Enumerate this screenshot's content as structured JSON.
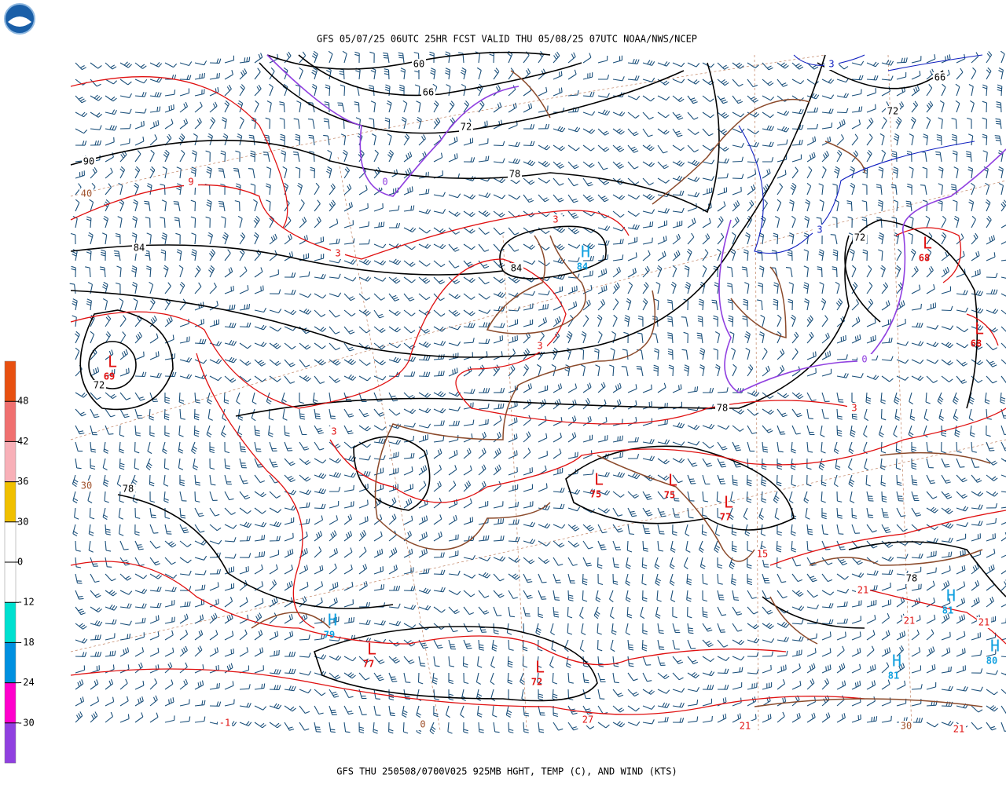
{
  "header": {
    "title": "GFS 05/07/25 06UTC 25HR FCST VALID THU 05/08/25 07UTC NOAA/NWS/NCEP"
  },
  "footer": {
    "text": "GFS THU 250508/0700V025 925MB HGHT, TEMP (C), AND WIND (KTS)"
  },
  "colorbar": {
    "colors": [
      "#e85010",
      "#f07070",
      "#f8b0b8",
      "#f0c000",
      "#ffffff",
      "#ffffff",
      "#00e0d0",
      "#0090e0",
      "#ff00cc",
      "#9040e0"
    ],
    "labels": [
      "48",
      "42",
      "36",
      "30",
      "0",
      "-12",
      "-18",
      "-24",
      "-30"
    ]
  },
  "centers": [
    {
      "letter": "L",
      "value": "69",
      "color": "#e01010",
      "value_color": "#e01010"
    },
    {
      "letter": "H",
      "value": "84",
      "color": "#10a0e0",
      "value_color": "#10a0e0"
    },
    {
      "letter": "L",
      "value": "68",
      "color": "#e01010",
      "value_color": "#e01010"
    },
    {
      "letter": "L",
      "value": "68",
      "color": "#e01010",
      "value_color": "#e01010"
    },
    {
      "letter": "L",
      "value": "75",
      "color": "#e01010",
      "value_color": "#e01010"
    },
    {
      "letter": "L",
      "value": "75",
      "color": "#e01010",
      "value_color": "#e01010"
    },
    {
      "letter": "L",
      "value": "77",
      "color": "#e01010",
      "value_color": "#e01010"
    },
    {
      "letter": "H",
      "value": "79",
      "color": "#10a0e0",
      "value_color": "#10a0e0"
    },
    {
      "letter": "L",
      "value": "77",
      "color": "#e01010",
      "value_color": "#e01010"
    },
    {
      "letter": "L",
      "value": "72",
      "color": "#e01010",
      "value_color": "#e01010"
    },
    {
      "letter": "H",
      "value": "81",
      "color": "#10a0e0",
      "value_color": "#10a0e0"
    },
    {
      "letter": "H",
      "value": "81",
      "color": "#10a0e0",
      "value_color": "#10a0e0"
    },
    {
      "letter": "H",
      "value": "80",
      "color": "#10a0e0",
      "value_color": "#10a0e0"
    }
  ],
  "contour_labels": [
    {
      "text": "60",
      "color": "#000000"
    },
    {
      "text": "66",
      "color": "#000000"
    },
    {
      "text": "72",
      "color": "#000000"
    },
    {
      "text": "78",
      "color": "#000000"
    },
    {
      "text": "90",
      "color": "#000000"
    },
    {
      "text": "84",
      "color": "#000000"
    },
    {
      "text": "84",
      "color": "#000000"
    },
    {
      "text": "72",
      "color": "#000000"
    },
    {
      "text": "78",
      "color": "#000000"
    },
    {
      "text": "78",
      "color": "#000000"
    },
    {
      "text": "72",
      "color": "#000000"
    },
    {
      "text": "72",
      "color": "#000000"
    },
    {
      "text": "66",
      "color": "#000000"
    },
    {
      "text": "78",
      "color": "#000000"
    },
    {
      "text": "9",
      "color": "#e01010"
    },
    {
      "text": "3",
      "color": "#e01010"
    },
    {
      "text": "3",
      "color": "#e01010"
    },
    {
      "text": "3",
      "color": "#e01010"
    },
    {
      "text": "3",
      "color": "#e01010"
    },
    {
      "text": "3",
      "color": "#e01010"
    },
    {
      "text": "15",
      "color": "#e01010"
    },
    {
      "text": "21",
      "color": "#e01010"
    },
    {
      "text": "21",
      "color": "#e01010"
    },
    {
      "text": "21",
      "color": "#e01010"
    },
    {
      "text": "27",
      "color": "#e01010"
    },
    {
      "text": "21",
      "color": "#e01010"
    },
    {
      "text": "21",
      "color": "#e01010"
    },
    {
      "text": "-1",
      "color": "#e01010"
    },
    {
      "text": "40",
      "color": "#a0522d"
    },
    {
      "text": "30",
      "color": "#a0522d"
    },
    {
      "text": "0",
      "color": "#a0522d"
    },
    {
      "text": "30",
      "color": "#a0522d"
    },
    {
      "text": "0",
      "color": "#9040e0"
    },
    {
      "text": "0",
      "color": "#9040e0"
    },
    {
      "text": "3",
      "color": "#1020c0"
    },
    {
      "text": "3",
      "color": "#1020c0"
    }
  ]
}
